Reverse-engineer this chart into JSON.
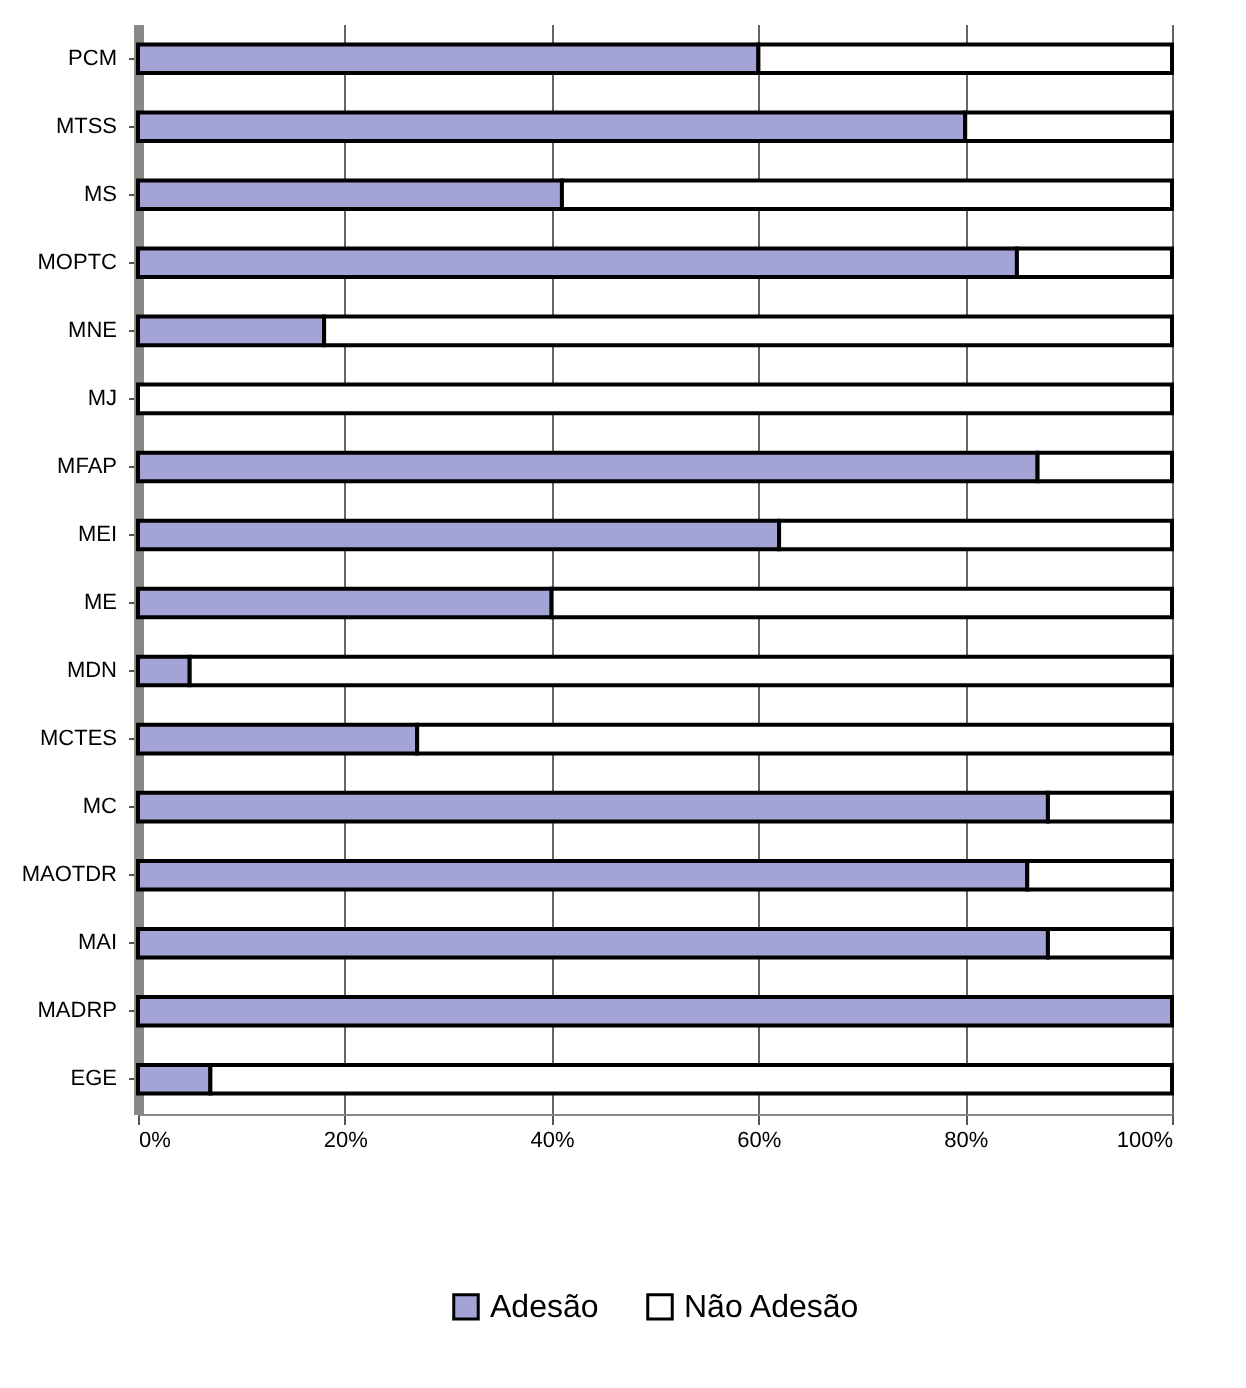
{
  "chart_data": {
    "type": "bar",
    "orientation": "horizontal",
    "stacked": true,
    "categories": [
      "PCM",
      "MTSS",
      "MS",
      "MOPTC",
      "MNE",
      "MJ",
      "MFAP",
      "MEI",
      "ME",
      "MDN",
      "MCTES",
      "MC",
      "MAOTDR",
      "MAI",
      "MADRP",
      "EGE"
    ],
    "series": [
      {
        "name": "Adesão",
        "color": "#a3a3d6",
        "values": [
          60,
          80,
          41,
          85,
          18,
          0,
          87,
          62,
          40,
          5,
          27,
          88,
          86,
          88,
          100,
          7
        ]
      },
      {
        "name": "Não Adesão",
        "color": "#ffffff",
        "values": [
          40,
          20,
          59,
          15,
          82,
          100,
          13,
          38,
          60,
          95,
          73,
          12,
          14,
          12,
          null,
          93
        ]
      }
    ],
    "xlim": [
      0,
      100
    ],
    "xticks": [
      {
        "value": 0,
        "label": "0%"
      },
      {
        "value": 20,
        "label": "20%"
      },
      {
        "value": 40,
        "label": "40%"
      },
      {
        "value": 60,
        "label": "60%"
      },
      {
        "value": 80,
        "label": "80%"
      },
      {
        "value": 100,
        "label": "100%"
      }
    ],
    "grid": "x",
    "legend": "bottom"
  }
}
